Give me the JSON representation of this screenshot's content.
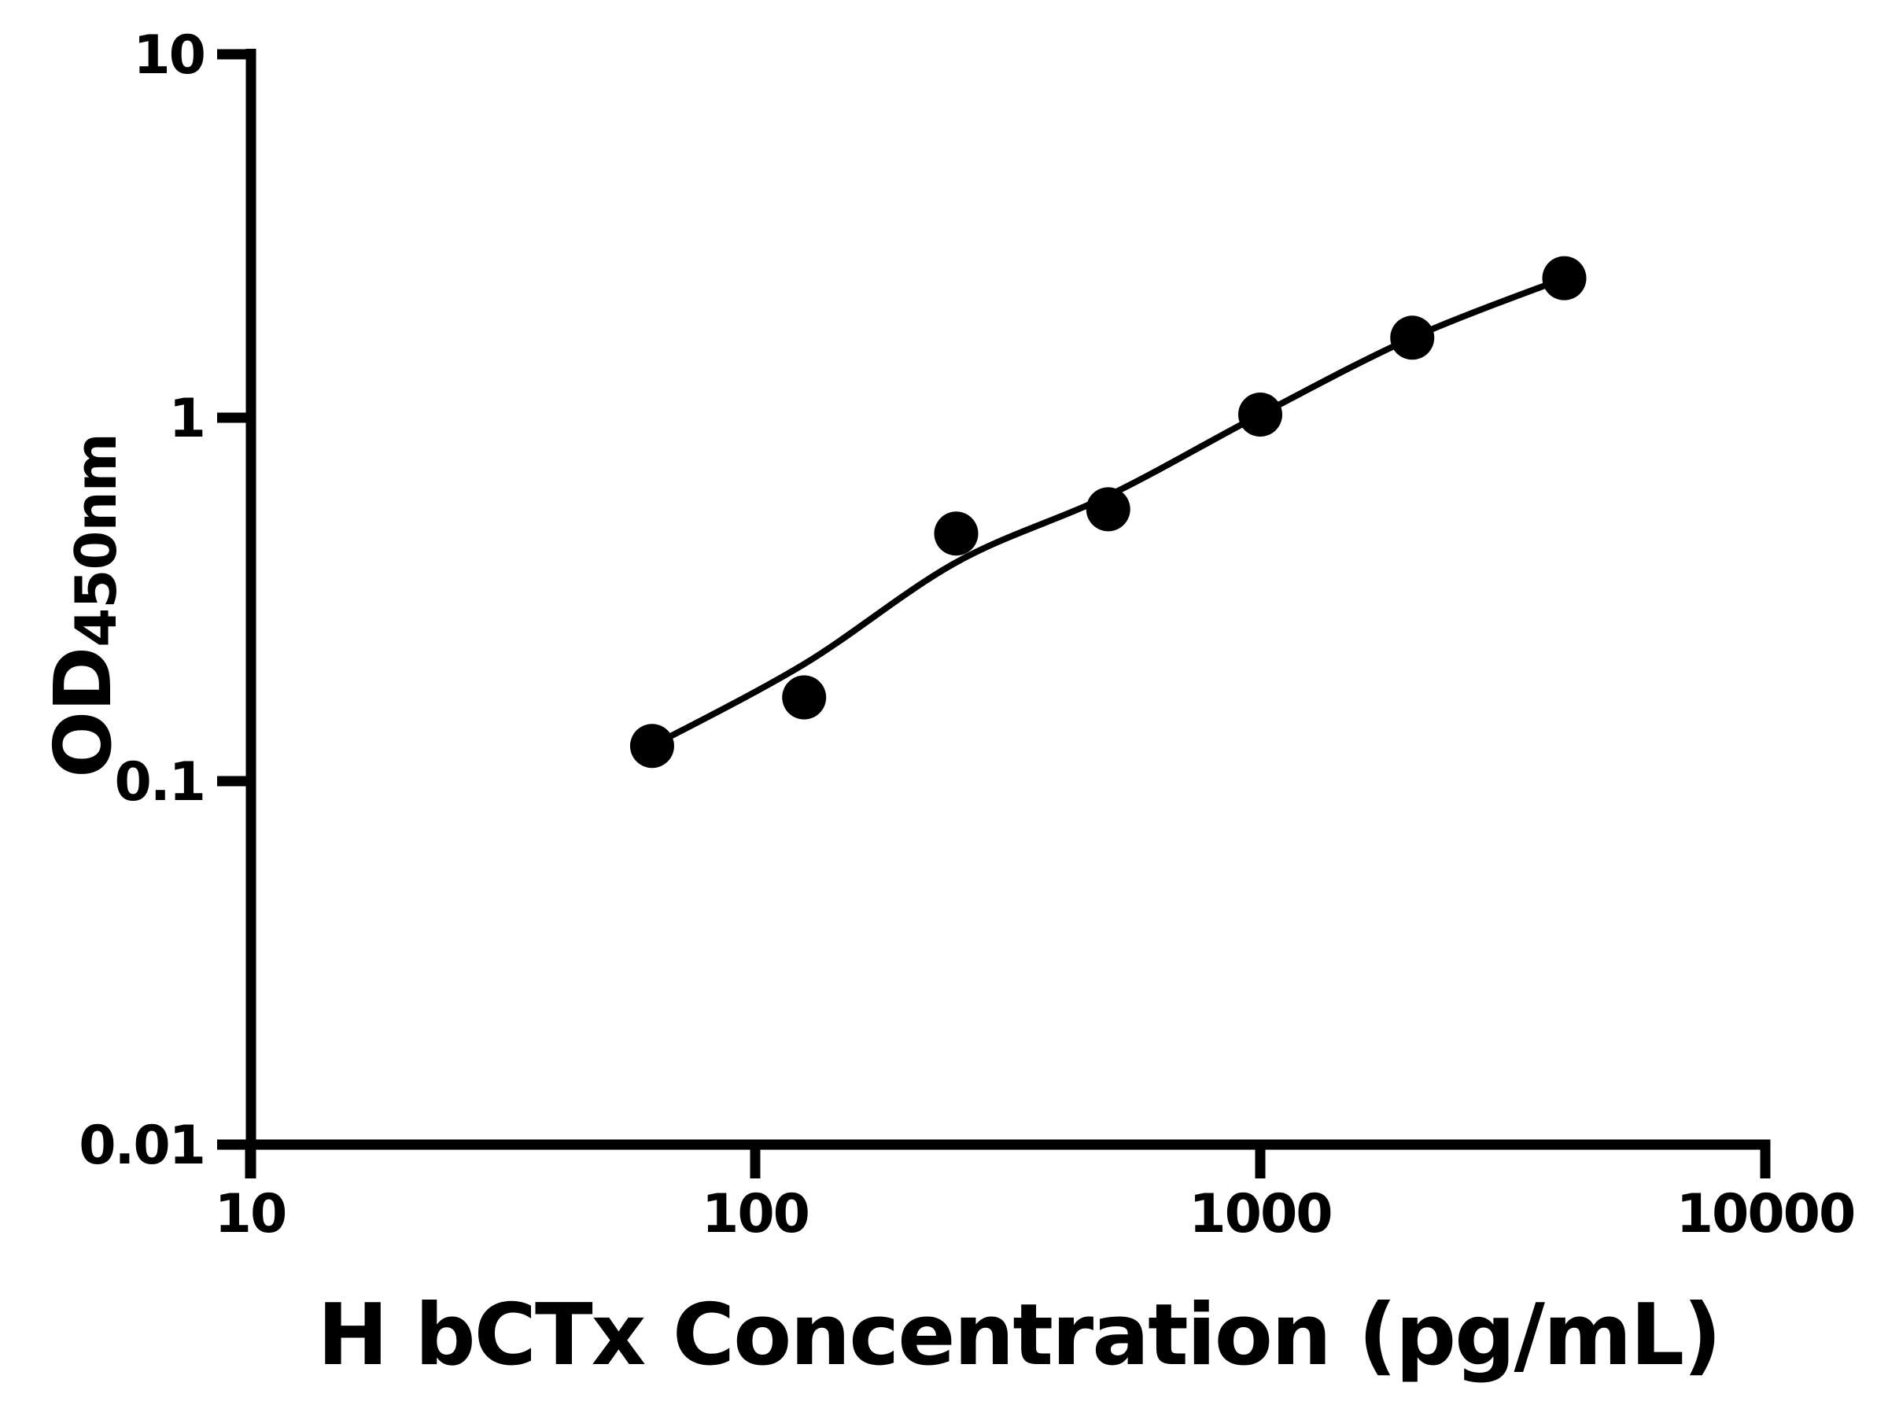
{
  "figure": {
    "background_color": "#ffffff",
    "foreground_color": "#000000"
  },
  "chart_data": {
    "type": "scatter",
    "title": "",
    "xlabel": "H bCTx Concentration (pg/mL)",
    "ylabel_main": "OD",
    "ylabel_sub": "450nm",
    "x_scale": "log",
    "y_scale": "log",
    "xlim": [
      10,
      10000
    ],
    "ylim": [
      0.01,
      10
    ],
    "grid": false,
    "legend_position": "none",
    "x_ticks": [
      {
        "value": 10,
        "label": "10"
      },
      {
        "value": 100,
        "label": "100"
      },
      {
        "value": 1000,
        "label": "1000"
      },
      {
        "value": 10000,
        "label": "10000"
      }
    ],
    "y_ticks": [
      {
        "value": 10,
        "label": "10"
      },
      {
        "value": 1,
        "label": "1"
      },
      {
        "value": 0.1,
        "label": "0.1"
      },
      {
        "value": 0.01,
        "label": "0.01"
      }
    ],
    "series": [
      {
        "name": "standard-points",
        "type": "scatter",
        "marker": "circle",
        "color": "#000000",
        "x": [
          62.5,
          125,
          250,
          500,
          1000,
          2000,
          4000
        ],
        "y": [
          0.125,
          0.17,
          0.48,
          0.56,
          1.02,
          1.66,
          2.42
        ]
      },
      {
        "name": "fitted-curve",
        "type": "line",
        "color": "#000000",
        "x": [
          62.5,
          125,
          250,
          500,
          1000,
          2000,
          4000
        ],
        "y": [
          0.125,
          0.21,
          0.4,
          0.61,
          1.02,
          1.66,
          2.42
        ]
      }
    ]
  }
}
